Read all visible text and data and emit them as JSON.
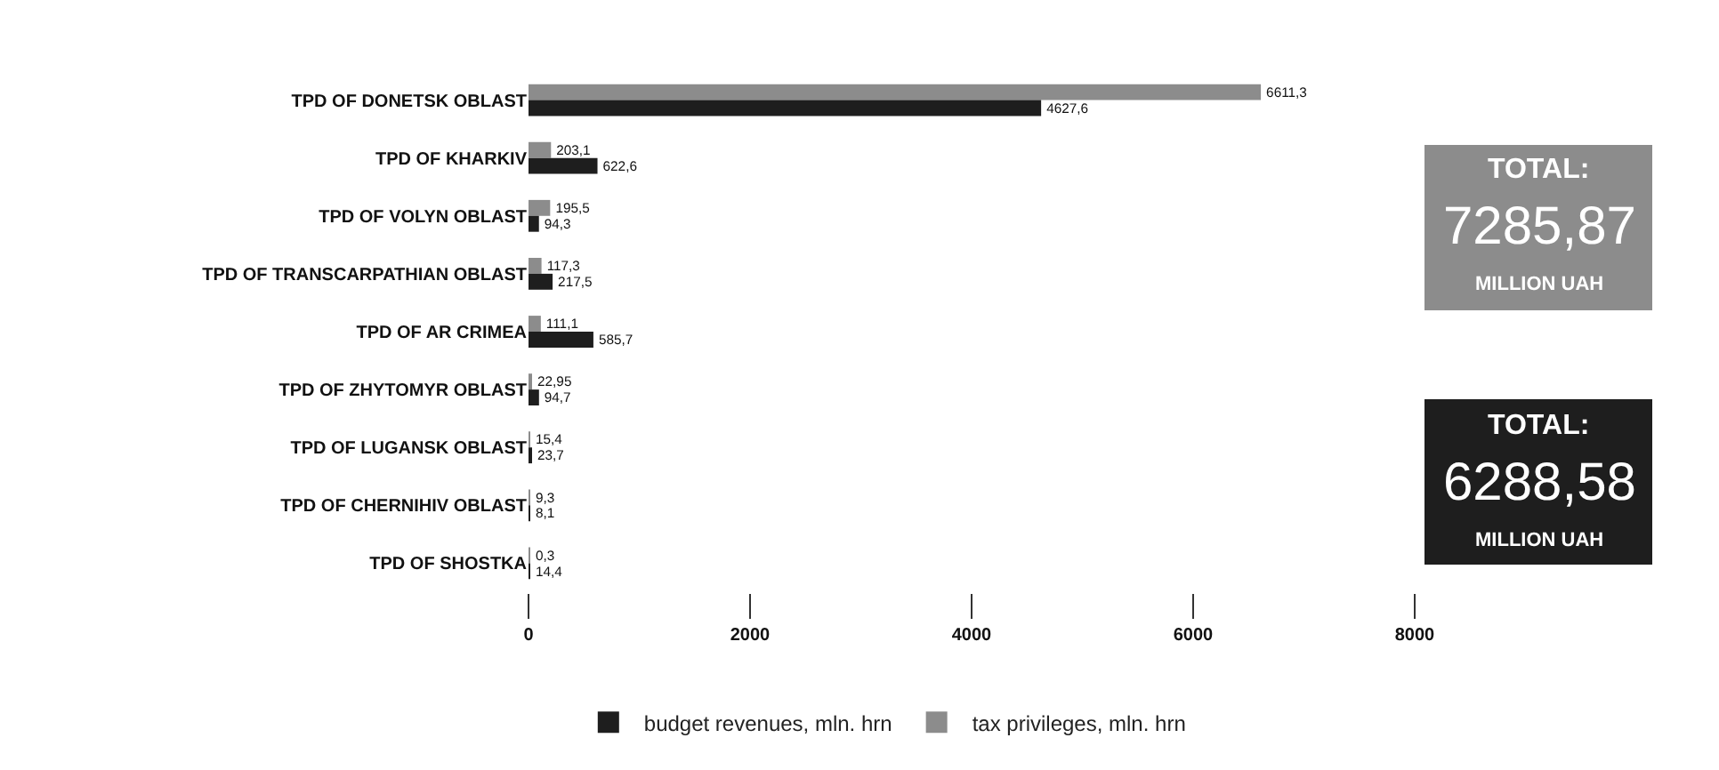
{
  "chart_data": {
    "type": "bar",
    "orientation": "horizontal",
    "categories": [
      "TPD OF DONETSK OBLAST",
      "TPD OF KHARKIV",
      "TPD OF VOLYN OBLAST",
      "TPD OF TRANSCARPATHIAN OBLAST",
      "TPD OF AR CRIMEA",
      "TPD OF ZHYTOMYR OBLAST",
      "TPD OF LUGANSK OBLAST",
      "TPD OF CHERNIHIV OBLAST",
      "TPD OF SHOSTKA"
    ],
    "series": [
      {
        "name": "tax privileges, mln. hrn",
        "color": "#8c8c8c",
        "values": [
          6611.3,
          203.1,
          195.5,
          117.3,
          111.1,
          22.95,
          15.4,
          9.3,
          0.3
        ],
        "value_labels": [
          "6611,3",
          "203,1",
          "195,5",
          "117,3",
          "111,1",
          "22,95",
          "15,4",
          "9,3",
          "0,3"
        ]
      },
      {
        "name": "budget revenues, mln. hrn",
        "color": "#1e1e1e",
        "values": [
          4627.6,
          622.6,
          94.3,
          217.5,
          585.7,
          94.7,
          23.7,
          8.1,
          14.4
        ],
        "value_labels": [
          "4627,6",
          "622,6",
          "94,3",
          "217,5",
          "585,7",
          "94,7",
          "23,7",
          "8,1",
          "14,4"
        ]
      }
    ],
    "xlim": [
      0,
      8000
    ],
    "xticks": [
      0,
      2000,
      4000,
      6000,
      8000
    ],
    "grid": false,
    "legend": "bottom",
    "annotations": [
      "TOTAL:",
      "7285,87",
      "MILLION UAH",
      "TOTAL:",
      "6288,58",
      "MILLION UAH"
    ]
  }
}
